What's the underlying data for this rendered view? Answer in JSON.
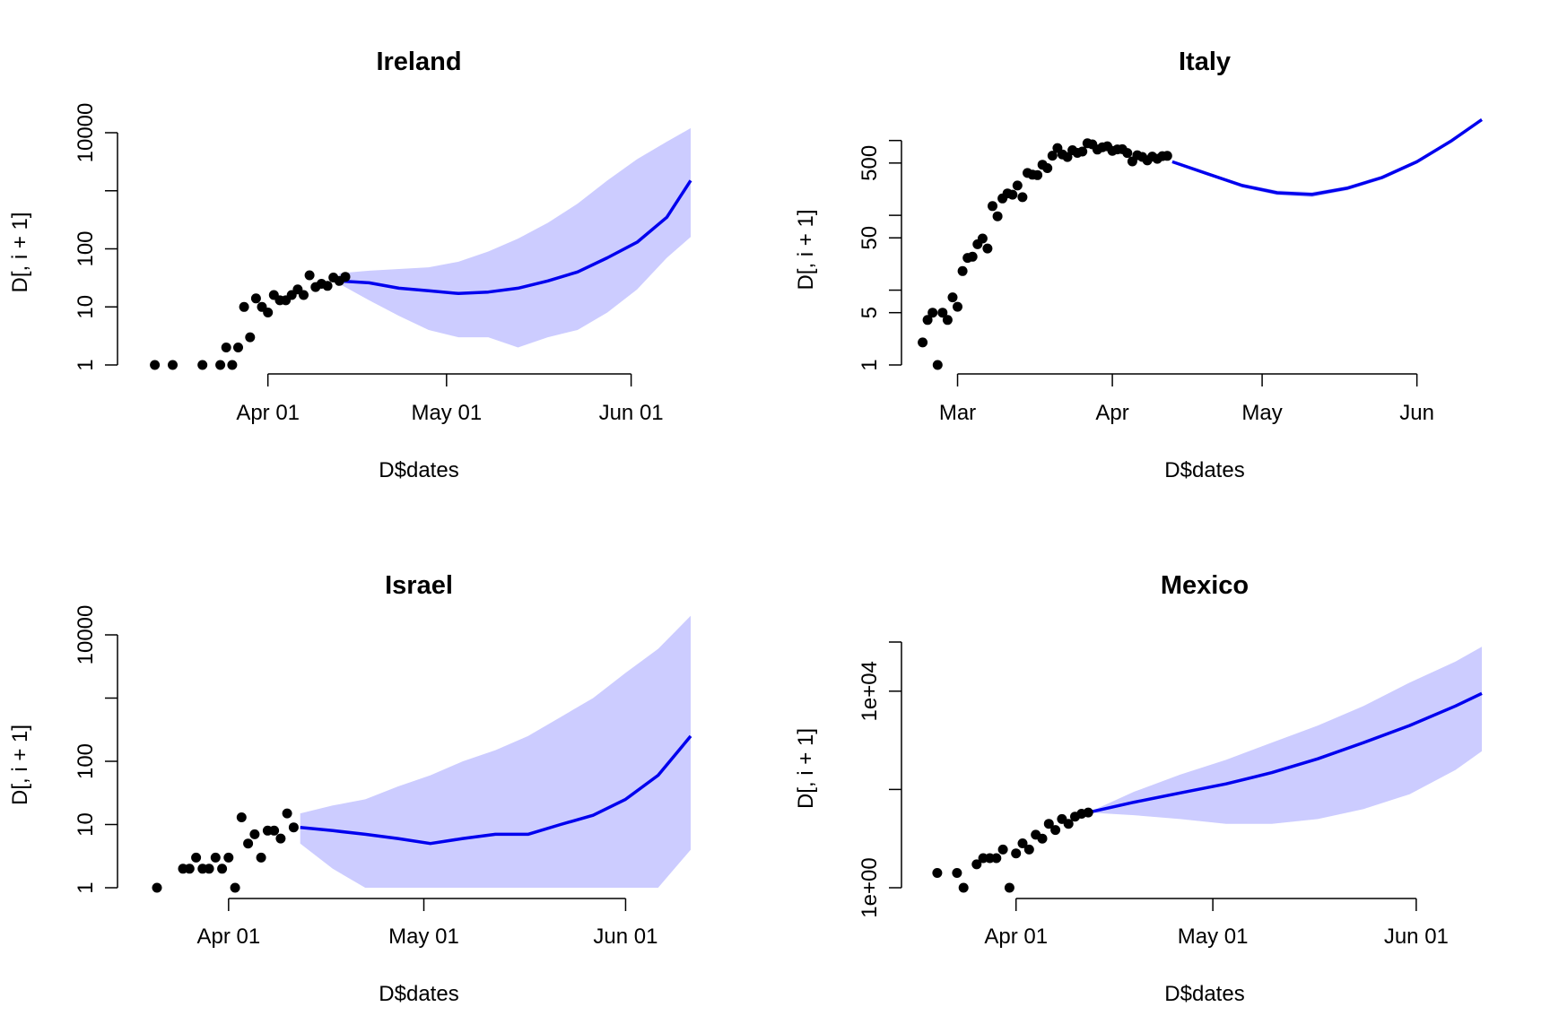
{
  "colors": {
    "band": "#CCCCFF",
    "line": "#0000EE",
    "points": "#000000"
  },
  "chart_data": [
    {
      "type": "line",
      "title": "Ireland",
      "xlabel": "D$dates",
      "ylabel": "D[, i + 1]",
      "log_y": true,
      "xlim": [
        "2020-03-09",
        "2020-06-11"
      ],
      "ylim": [
        1,
        10000
      ],
      "x_ticks": [
        {
          "date": "2020-04-01",
          "label": "Apr 01"
        },
        {
          "date": "2020-05-01",
          "label": "May 01"
        },
        {
          "date": "2020-06-01",
          "label": "Jun 01"
        }
      ],
      "y_ticks": [
        {
          "value": 1,
          "label": "1"
        },
        {
          "value": 10,
          "label": "10"
        },
        {
          "value": 100,
          "label": "100"
        },
        {
          "value": 10000,
          "label": "10000"
        }
      ],
      "y_minor_ticks": [
        1000
      ],
      "observed": {
        "dates": [
          "2020-03-13",
          "2020-03-16",
          "2020-03-21",
          "2020-03-24",
          "2020-03-25",
          "2020-03-26",
          "2020-03-27",
          "2020-03-28",
          "2020-03-29",
          "2020-03-30",
          "2020-03-31",
          "2020-04-01",
          "2020-04-02",
          "2020-04-03",
          "2020-04-04",
          "2020-04-05",
          "2020-04-06",
          "2020-04-07",
          "2020-04-08",
          "2020-04-09",
          "2020-04-10",
          "2020-04-11",
          "2020-04-12",
          "2020-04-13",
          "2020-04-14"
        ],
        "values": [
          1,
          1,
          1,
          1,
          2,
          1,
          2,
          10,
          3,
          14,
          10,
          8,
          16,
          13,
          13,
          16,
          20,
          16,
          35,
          22,
          25,
          23,
          32,
          28,
          33
        ]
      },
      "forecast": {
        "dates": [
          "2020-04-13",
          "2020-04-18",
          "2020-04-23",
          "2020-04-28",
          "2020-05-03",
          "2020-05-08",
          "2020-05-13",
          "2020-05-18",
          "2020-05-23",
          "2020-05-28",
          "2020-06-02",
          "2020-06-07",
          "2020-06-11"
        ],
        "median": [
          28,
          26,
          21,
          19,
          17,
          18,
          21,
          28,
          40,
          70,
          130,
          350,
          1500
        ],
        "lower": [
          25,
          13,
          7,
          4,
          3,
          3,
          2,
          3,
          4,
          8,
          20,
          70,
          160
        ],
        "upper": [
          38,
          42,
          45,
          48,
          60,
          90,
          150,
          280,
          600,
          1500,
          3500,
          7000,
          12000
        ]
      }
    },
    {
      "type": "line",
      "title": "Italy",
      "xlabel": "D$dates",
      "ylabel": "D[, i + 1]",
      "log_y": true,
      "xlim": [
        "2020-02-22",
        "2020-06-14"
      ],
      "ylim": [
        1,
        1500
      ],
      "x_ticks": [
        {
          "date": "2020-03-01",
          "label": "Mar"
        },
        {
          "date": "2020-04-01",
          "label": "Apr"
        },
        {
          "date": "2020-05-01",
          "label": "May"
        },
        {
          "date": "2020-06-01",
          "label": "Jun"
        }
      ],
      "y_ticks": [
        {
          "value": 1,
          "label": "1"
        },
        {
          "value": 5,
          "label": "5"
        },
        {
          "value": 50,
          "label": "50"
        },
        {
          "value": 500,
          "label": "500"
        }
      ],
      "y_minor_ticks": [
        10,
        100,
        1000
      ],
      "observed": {
        "dates": [
          "2020-02-23",
          "2020-02-24",
          "2020-02-25",
          "2020-02-26",
          "2020-02-27",
          "2020-02-28",
          "2020-02-29",
          "2020-03-01",
          "2020-03-02",
          "2020-03-03",
          "2020-03-04",
          "2020-03-05",
          "2020-03-06",
          "2020-03-07",
          "2020-03-08",
          "2020-03-09",
          "2020-03-10",
          "2020-03-11",
          "2020-03-12",
          "2020-03-13",
          "2020-03-14",
          "2020-03-15",
          "2020-03-16",
          "2020-03-17",
          "2020-03-18",
          "2020-03-19",
          "2020-03-20",
          "2020-03-21",
          "2020-03-22",
          "2020-03-23",
          "2020-03-24",
          "2020-03-25",
          "2020-03-26",
          "2020-03-27",
          "2020-03-28",
          "2020-03-29",
          "2020-03-30",
          "2020-03-31",
          "2020-04-01",
          "2020-04-02",
          "2020-04-03",
          "2020-04-04",
          "2020-04-05",
          "2020-04-06",
          "2020-04-07",
          "2020-04-08",
          "2020-04-09",
          "2020-04-10",
          "2020-04-11",
          "2020-04-12"
        ],
        "values": [
          2,
          4,
          5,
          1,
          5,
          4,
          8,
          6,
          18,
          27,
          28,
          41,
          49,
          36,
          133,
          97,
          168,
          196,
          189,
          250,
          175,
          368,
          349,
          345,
          475,
          427,
          627,
          793,
          651,
          601,
          743,
          683,
          712,
          919,
          889,
          756,
          812,
          837,
          727,
          760,
          766,
          681,
          525,
          636,
          604,
          542,
          610,
          570,
          619,
          624
        ]
      },
      "forecast": {
        "dates": [
          "2020-04-13",
          "2020-04-20",
          "2020-04-27",
          "2020-05-04",
          "2020-05-11",
          "2020-05-18",
          "2020-05-25",
          "2020-06-01",
          "2020-06-08",
          "2020-06-14"
        ],
        "median": [
          520,
          360,
          250,
          200,
          190,
          230,
          320,
          520,
          1000,
          1900
        ],
        "lower": [
          510,
          345,
          235,
          185,
          175,
          215,
          300,
          490,
          950,
          1800
        ],
        "upper": [
          530,
          375,
          265,
          215,
          205,
          245,
          340,
          550,
          1050,
          2000
        ]
      }
    },
    {
      "type": "line",
      "title": "Israel",
      "xlabel": "D$dates",
      "ylabel": "D[, i + 1]",
      "log_y": true,
      "xlim": [
        "2020-03-17",
        "2020-06-11"
      ],
      "ylim": [
        1,
        10000
      ],
      "x_ticks": [
        {
          "date": "2020-04-01",
          "label": "Apr 01"
        },
        {
          "date": "2020-05-01",
          "label": "May 01"
        },
        {
          "date": "2020-06-01",
          "label": "Jun 01"
        }
      ],
      "y_ticks": [
        {
          "value": 1,
          "label": "1"
        },
        {
          "value": 10,
          "label": "10"
        },
        {
          "value": 100,
          "label": "100"
        },
        {
          "value": 10000,
          "label": "10000"
        }
      ],
      "y_minor_ticks": [
        1000
      ],
      "observed": {
        "dates": [
          "2020-03-21",
          "2020-03-25",
          "2020-03-26",
          "2020-03-27",
          "2020-03-28",
          "2020-03-29",
          "2020-03-30",
          "2020-03-31",
          "2020-04-01",
          "2020-04-02",
          "2020-04-03",
          "2020-04-04",
          "2020-04-05",
          "2020-04-06",
          "2020-04-07",
          "2020-04-08",
          "2020-04-09",
          "2020-04-10",
          "2020-04-11"
        ],
        "values": [
          1,
          2,
          2,
          3,
          2,
          2,
          3,
          2,
          3,
          1,
          13,
          5,
          7,
          3,
          8,
          8,
          6,
          15,
          9
        ]
      },
      "forecast": {
        "dates": [
          "2020-04-12",
          "2020-04-17",
          "2020-04-22",
          "2020-04-27",
          "2020-05-02",
          "2020-05-07",
          "2020-05-12",
          "2020-05-17",
          "2020-05-22",
          "2020-05-27",
          "2020-06-01",
          "2020-06-06",
          "2020-06-11"
        ],
        "median": [
          9,
          8,
          7,
          6,
          5,
          6,
          7,
          7,
          10,
          14,
          25,
          60,
          250
        ],
        "lower": [
          5,
          2,
          1,
          1,
          1,
          1,
          1,
          1,
          1,
          1,
          1,
          1,
          4
        ],
        "upper": [
          15,
          20,
          25,
          40,
          60,
          100,
          150,
          250,
          500,
          1000,
          2500,
          6000,
          20000
        ]
      }
    },
    {
      "type": "line",
      "title": "Mexico",
      "xlabel": "D$dates",
      "ylabel": "D[, i + 1]",
      "log_y": true,
      "xlim": [
        "2020-03-17",
        "2020-06-11"
      ],
      "ylim": [
        1,
        100000
      ],
      "x_ticks": [
        {
          "date": "2020-04-01",
          "label": "Apr 01"
        },
        {
          "date": "2020-05-01",
          "label": "May 01"
        },
        {
          "date": "2020-06-01",
          "label": "Jun 01"
        }
      ],
      "y_ticks": [
        {
          "value": 1,
          "label": "1e+00"
        },
        {
          "value": 10000,
          "label": "1e+04"
        }
      ],
      "y_minor_ticks": [
        100,
        100000
      ],
      "observed": {
        "dates": [
          "2020-03-20",
          "2020-03-23",
          "2020-03-24",
          "2020-03-26",
          "2020-03-27",
          "2020-03-28",
          "2020-03-29",
          "2020-03-30",
          "2020-03-31",
          "2020-04-01",
          "2020-04-02",
          "2020-04-03",
          "2020-04-04",
          "2020-04-05",
          "2020-04-06",
          "2020-04-07",
          "2020-04-08",
          "2020-04-09",
          "2020-04-10",
          "2020-04-11",
          "2020-04-12"
        ],
        "values": [
          2,
          2,
          1,
          3,
          4,
          4,
          4,
          6,
          1,
          5,
          8,
          6,
          12,
          10,
          20,
          15,
          25,
          20,
          28,
          32,
          34
        ]
      },
      "forecast": {
        "dates": [
          "2020-04-12",
          "2020-04-19",
          "2020-04-26",
          "2020-05-03",
          "2020-05-10",
          "2020-05-17",
          "2020-05-24",
          "2020-05-31",
          "2020-06-07",
          "2020-06-11"
        ],
        "median": [
          34,
          55,
          85,
          130,
          220,
          420,
          900,
          2000,
          5000,
          9000
        ],
        "lower": [
          34,
          30,
          25,
          20,
          20,
          25,
          40,
          80,
          250,
          600
        ],
        "upper": [
          34,
          90,
          200,
          400,
          900,
          2000,
          5000,
          15000,
          40000,
          80000
        ]
      }
    }
  ]
}
